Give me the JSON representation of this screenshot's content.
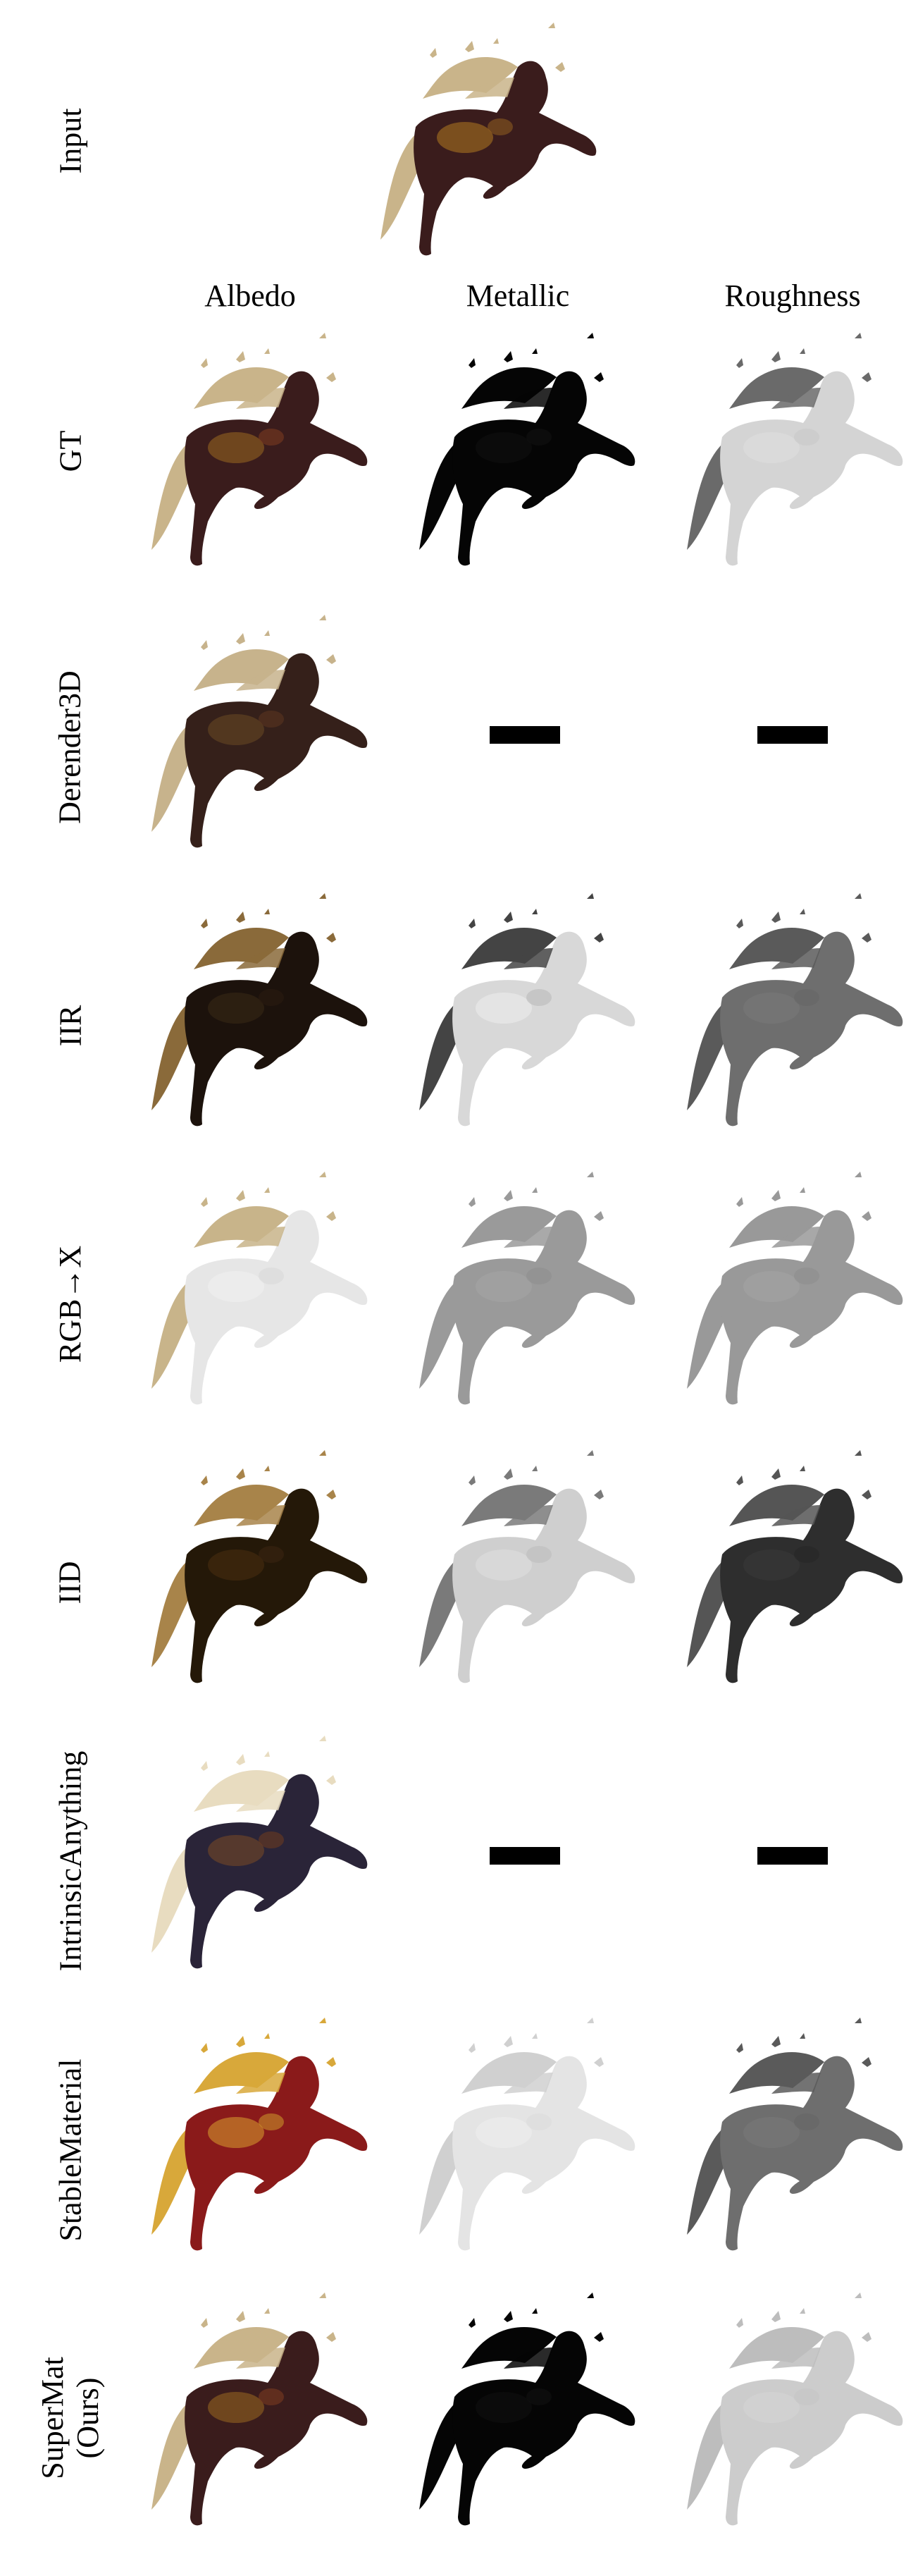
{
  "columns": [
    "Albedo",
    "Metallic",
    "Roughness"
  ],
  "rows": [
    {
      "label": "Input",
      "label_line2": "",
      "cells": [
        "input"
      ]
    },
    {
      "label": "GT",
      "label_line2": "",
      "cells": [
        "albedo",
        "metal-black",
        "rough-light"
      ]
    },
    {
      "label": "Derender3D",
      "label_line2": "",
      "cells": [
        "albedo-blur",
        "missing",
        "missing"
      ]
    },
    {
      "label": "IIR",
      "label_line2": "",
      "cells": [
        "albedo-dark",
        "metal-white",
        "rough-mid"
      ]
    },
    {
      "label": "RGB→X",
      "label_line2": "",
      "cells": [
        "albedo-pale",
        "metal-gray",
        "rough-gray"
      ]
    },
    {
      "label": "IID",
      "label_line2": "",
      "cells": [
        "albedo-brown",
        "metal-light",
        "rough-dark"
      ]
    },
    {
      "label": "IntrinsicAnything",
      "label_line2": "",
      "cells": [
        "albedo-navy",
        "missing",
        "missing"
      ]
    },
    {
      "label": "StableMaterial",
      "label_line2": "",
      "cells": [
        "albedo-red",
        "metal-vlight",
        "rough-mid"
      ]
    },
    {
      "label": "SuperMat",
      "label_line2": "(Ours)",
      "cells": [
        "albedo",
        "metal-black",
        "rough-vlight"
      ]
    }
  ]
}
